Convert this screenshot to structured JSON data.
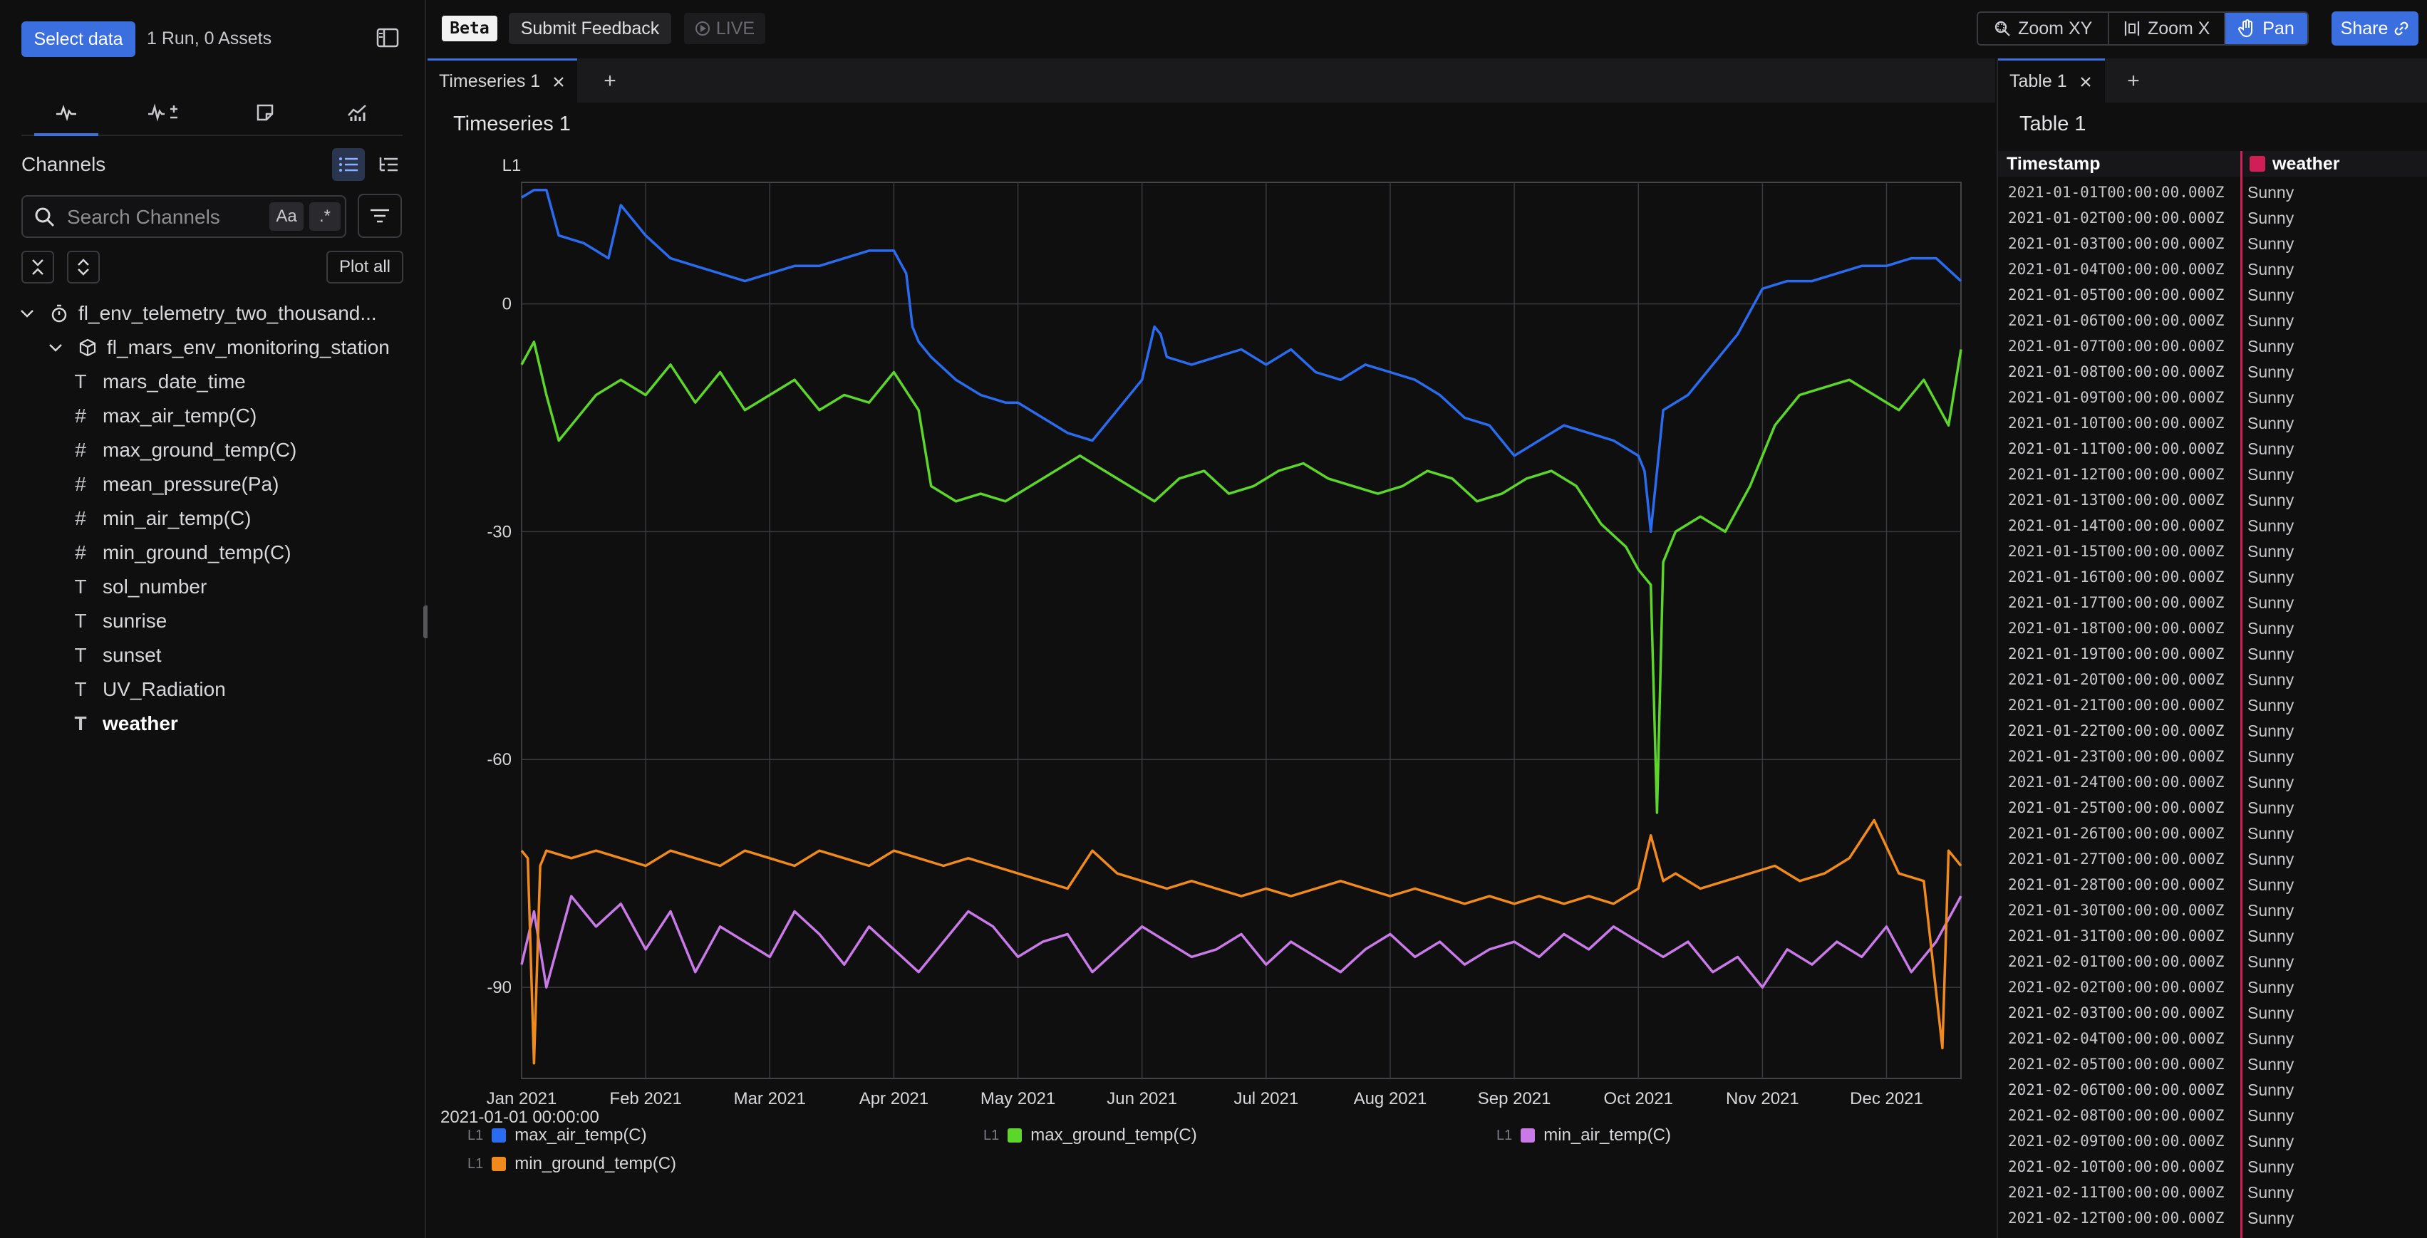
{
  "sidebar": {
    "select_data_label": "Select data",
    "run_info": "1 Run, 0 Assets",
    "tabs": [
      "pulse-icon",
      "pulse-plus-minus-icon",
      "note-icon",
      "chart-icon"
    ],
    "channels_title": "Channels",
    "search": {
      "placeholder": "Search Channels",
      "value": ""
    },
    "case_toggle_label": "Aa",
    "regex_toggle_label": ".*",
    "plot_all_label": "Plot all",
    "tree": {
      "run_name": "fl_env_telemetry_two_thousand...",
      "asset_name": "fl_mars_env_monitoring_station",
      "channels": [
        {
          "name": "mars_date_time",
          "type": "T"
        },
        {
          "name": "max_air_temp(C)",
          "type": "#"
        },
        {
          "name": "max_ground_temp(C)",
          "type": "#"
        },
        {
          "name": "mean_pressure(Pa)",
          "type": "#"
        },
        {
          "name": "min_air_temp(C)",
          "type": "#"
        },
        {
          "name": "min_ground_temp(C)",
          "type": "#"
        },
        {
          "name": "sol_number",
          "type": "T"
        },
        {
          "name": "sunrise",
          "type": "T"
        },
        {
          "name": "sunset",
          "type": "T"
        },
        {
          "name": "UV_Radiation",
          "type": "T"
        },
        {
          "name": "weather",
          "type": "T",
          "selected": true
        }
      ]
    }
  },
  "topbar": {
    "beta_label": "Beta",
    "feedback_label": "Submit Feedback",
    "live_label": "LIVE",
    "zoom_xy_label": "Zoom XY",
    "zoom_x_label": "Zoom X",
    "pan_label": "Pan",
    "share_label": "Share"
  },
  "timeseries_panel": {
    "tab_label": "Timeseries 1",
    "title": "Timeseries 1",
    "start_label": "2021-01-01 00:00:00"
  },
  "chart_data": {
    "type": "line",
    "title": "Timeseries 1",
    "axis_label": "L1",
    "ylim": [
      -102,
      16
    ],
    "yticks": [
      0,
      -30,
      -60,
      -90
    ],
    "xlim_month": [
      0,
      11.6
    ],
    "xticks": [
      "Jan 2021",
      "Feb 2021",
      "Mar 2021",
      "Apr 2021",
      "May 2021",
      "Jun 2021",
      "Jul 2021",
      "Aug 2021",
      "Sep 2021",
      "Oct 2021",
      "Nov 2021",
      "Dec 2021"
    ],
    "grid": true,
    "legend_placement": "bottom",
    "series": [
      {
        "name": "max_air_temp(C)",
        "color": "#2a6cf0",
        "x": [
          0,
          0.1,
          0.2,
          0.3,
          0.5,
          0.6,
          0.7,
          0.8,
          1.0,
          1.2,
          1.4,
          1.6,
          1.8,
          2.0,
          2.2,
          2.4,
          2.6,
          2.8,
          3.0,
          3.1,
          3.15,
          3.2,
          3.3,
          3.5,
          3.7,
          3.9,
          4.0,
          4.2,
          4.4,
          4.6,
          4.8,
          5.0,
          5.1,
          5.15,
          5.2,
          5.4,
          5.6,
          5.8,
          6.0,
          6.2,
          6.4,
          6.6,
          6.8,
          7.0,
          7.2,
          7.4,
          7.6,
          7.8,
          8.0,
          8.2,
          8.4,
          8.6,
          8.8,
          9.0,
          9.05,
          9.1,
          9.2,
          9.4,
          9.6,
          9.8,
          10.0,
          10.2,
          10.4,
          10.6,
          10.8,
          11.0,
          11.2,
          11.4,
          11.6
        ],
        "y": [
          14,
          15,
          15,
          9,
          8,
          7,
          6,
          13,
          9,
          6,
          5,
          4,
          3,
          4,
          5,
          5,
          6,
          7,
          7,
          4,
          -3,
          -5,
          -7,
          -10,
          -12,
          -13,
          -13,
          -15,
          -17,
          -18,
          -14,
          -10,
          -3,
          -4,
          -7,
          -8,
          -7,
          -6,
          -8,
          -6,
          -9,
          -10,
          -8,
          -9,
          -10,
          -12,
          -15,
          -16,
          -20,
          -18,
          -16,
          -17,
          -18,
          -20,
          -22,
          -30,
          -14,
          -12,
          -8,
          -4,
          2,
          3,
          3,
          4,
          5,
          5,
          6,
          6,
          3
        ]
      },
      {
        "name": "max_ground_temp(C)",
        "color": "#5cd62a",
        "x": [
          0,
          0.1,
          0.2,
          0.3,
          0.4,
          0.6,
          0.8,
          1.0,
          1.2,
          1.4,
          1.6,
          1.8,
          2.0,
          2.2,
          2.4,
          2.6,
          2.8,
          3.0,
          3.2,
          3.3,
          3.5,
          3.7,
          3.9,
          4.1,
          4.3,
          4.5,
          4.7,
          4.9,
          5.1,
          5.3,
          5.5,
          5.7,
          5.9,
          6.1,
          6.3,
          6.5,
          6.7,
          6.9,
          7.1,
          7.3,
          7.5,
          7.7,
          7.9,
          8.1,
          8.3,
          8.5,
          8.7,
          8.9,
          9.0,
          9.1,
          9.15,
          9.2,
          9.3,
          9.5,
          9.7,
          9.9,
          10.1,
          10.3,
          10.5,
          10.7,
          10.9,
          11.1,
          11.3,
          11.5,
          11.6
        ],
        "y": [
          -8,
          -5,
          -12,
          -18,
          -16,
          -12,
          -10,
          -12,
          -8,
          -13,
          -9,
          -14,
          -12,
          -10,
          -14,
          -12,
          -13,
          -9,
          -14,
          -24,
          -26,
          -25,
          -26,
          -24,
          -22,
          -20,
          -22,
          -24,
          -26,
          -23,
          -22,
          -25,
          -24,
          -22,
          -21,
          -23,
          -24,
          -25,
          -24,
          -22,
          -23,
          -26,
          -25,
          -23,
          -22,
          -24,
          -29,
          -32,
          -35,
          -37,
          -67,
          -34,
          -30,
          -28,
          -30,
          -24,
          -16,
          -12,
          -11,
          -10,
          -12,
          -14,
          -10,
          -16,
          -6
        ]
      },
      {
        "name": "min_air_temp(C)",
        "color": "#c97ae8",
        "x": [
          0,
          0.1,
          0.2,
          0.3,
          0.4,
          0.6,
          0.8,
          1.0,
          1.2,
          1.4,
          1.6,
          1.8,
          2.0,
          2.2,
          2.4,
          2.6,
          2.8,
          3.0,
          3.2,
          3.4,
          3.6,
          3.8,
          4.0,
          4.2,
          4.4,
          4.6,
          4.8,
          5.0,
          5.2,
          5.4,
          5.6,
          5.8,
          6.0,
          6.2,
          6.4,
          6.6,
          6.8,
          7.0,
          7.2,
          7.4,
          7.6,
          7.8,
          8.0,
          8.2,
          8.4,
          8.6,
          8.8,
          9.0,
          9.2,
          9.4,
          9.6,
          9.8,
          10.0,
          10.2,
          10.4,
          10.6,
          10.8,
          11.0,
          11.2,
          11.4,
          11.6
        ],
        "y": [
          -87,
          -80,
          -90,
          -84,
          -78,
          -82,
          -79,
          -85,
          -80,
          -88,
          -82,
          -84,
          -86,
          -80,
          -83,
          -87,
          -82,
          -85,
          -88,
          -84,
          -80,
          -82,
          -86,
          -84,
          -83,
          -88,
          -85,
          -82,
          -84,
          -86,
          -85,
          -83,
          -87,
          -84,
          -86,
          -88,
          -85,
          -83,
          -86,
          -84,
          -87,
          -85,
          -84,
          -86,
          -83,
          -85,
          -82,
          -84,
          -86,
          -84,
          -88,
          -86,
          -90,
          -85,
          -87,
          -84,
          -86,
          -82,
          -88,
          -84,
          -78
        ]
      },
      {
        "name": "min_ground_temp(C)",
        "color": "#f08a1c",
        "x": [
          0,
          0.05,
          0.1,
          0.15,
          0.2,
          0.4,
          0.6,
          0.8,
          1.0,
          1.2,
          1.4,
          1.6,
          1.8,
          2.0,
          2.2,
          2.4,
          2.6,
          2.8,
          3.0,
          3.2,
          3.4,
          3.6,
          3.8,
          4.0,
          4.2,
          4.4,
          4.6,
          4.8,
          5.0,
          5.2,
          5.4,
          5.6,
          5.8,
          6.0,
          6.2,
          6.4,
          6.6,
          6.8,
          7.0,
          7.2,
          7.4,
          7.6,
          7.8,
          8.0,
          8.2,
          8.4,
          8.6,
          8.8,
          9.0,
          9.1,
          9.2,
          9.3,
          9.5,
          9.7,
          9.9,
          10.1,
          10.3,
          10.5,
          10.7,
          10.9,
          11.1,
          11.3,
          11.45,
          11.5,
          11.6
        ],
        "y": [
          -72,
          -73,
          -100,
          -74,
          -72,
          -73,
          -72,
          -73,
          -74,
          -72,
          -73,
          -74,
          -72,
          -73,
          -74,
          -72,
          -73,
          -74,
          -72,
          -73,
          -74,
          -73,
          -74,
          -75,
          -76,
          -77,
          -72,
          -75,
          -76,
          -77,
          -76,
          -77,
          -78,
          -77,
          -78,
          -77,
          -76,
          -77,
          -78,
          -77,
          -78,
          -79,
          -78,
          -79,
          -78,
          -79,
          -78,
          -79,
          -77,
          -70,
          -76,
          -75,
          -77,
          -76,
          -75,
          -74,
          -76,
          -75,
          -73,
          -68,
          -75,
          -76,
          -98,
          -72,
          -74
        ]
      }
    ]
  },
  "table_panel": {
    "tab_label": "Table 1",
    "title": "Table 1",
    "columns": [
      "Timestamp",
      "weather"
    ],
    "weather_color": "#d21e56",
    "rows": [
      [
        "2021-01-01T00:00:00.000Z",
        "Sunny"
      ],
      [
        "2021-01-02T00:00:00.000Z",
        "Sunny"
      ],
      [
        "2021-01-03T00:00:00.000Z",
        "Sunny"
      ],
      [
        "2021-01-04T00:00:00.000Z",
        "Sunny"
      ],
      [
        "2021-01-05T00:00:00.000Z",
        "Sunny"
      ],
      [
        "2021-01-06T00:00:00.000Z",
        "Sunny"
      ],
      [
        "2021-01-07T00:00:00.000Z",
        "Sunny"
      ],
      [
        "2021-01-08T00:00:00.000Z",
        "Sunny"
      ],
      [
        "2021-01-09T00:00:00.000Z",
        "Sunny"
      ],
      [
        "2021-01-10T00:00:00.000Z",
        "Sunny"
      ],
      [
        "2021-01-11T00:00:00.000Z",
        "Sunny"
      ],
      [
        "2021-01-12T00:00:00.000Z",
        "Sunny"
      ],
      [
        "2021-01-13T00:00:00.000Z",
        "Sunny"
      ],
      [
        "2021-01-14T00:00:00.000Z",
        "Sunny"
      ],
      [
        "2021-01-15T00:00:00.000Z",
        "Sunny"
      ],
      [
        "2021-01-16T00:00:00.000Z",
        "Sunny"
      ],
      [
        "2021-01-17T00:00:00.000Z",
        "Sunny"
      ],
      [
        "2021-01-18T00:00:00.000Z",
        "Sunny"
      ],
      [
        "2021-01-19T00:00:00.000Z",
        "Sunny"
      ],
      [
        "2021-01-20T00:00:00.000Z",
        "Sunny"
      ],
      [
        "2021-01-21T00:00:00.000Z",
        "Sunny"
      ],
      [
        "2021-01-22T00:00:00.000Z",
        "Sunny"
      ],
      [
        "2021-01-23T00:00:00.000Z",
        "Sunny"
      ],
      [
        "2021-01-24T00:00:00.000Z",
        "Sunny"
      ],
      [
        "2021-01-25T00:00:00.000Z",
        "Sunny"
      ],
      [
        "2021-01-26T00:00:00.000Z",
        "Sunny"
      ],
      [
        "2021-01-27T00:00:00.000Z",
        "Sunny"
      ],
      [
        "2021-01-28T00:00:00.000Z",
        "Sunny"
      ],
      [
        "2021-01-30T00:00:00.000Z",
        "Sunny"
      ],
      [
        "2021-01-31T00:00:00.000Z",
        "Sunny"
      ],
      [
        "2021-02-01T00:00:00.000Z",
        "Sunny"
      ],
      [
        "2021-02-02T00:00:00.000Z",
        "Sunny"
      ],
      [
        "2021-02-03T00:00:00.000Z",
        "Sunny"
      ],
      [
        "2021-02-04T00:00:00.000Z",
        "Sunny"
      ],
      [
        "2021-02-05T00:00:00.000Z",
        "Sunny"
      ],
      [
        "2021-02-06T00:00:00.000Z",
        "Sunny"
      ],
      [
        "2021-02-08T00:00:00.000Z",
        "Sunny"
      ],
      [
        "2021-02-09T00:00:00.000Z",
        "Sunny"
      ],
      [
        "2021-02-10T00:00:00.000Z",
        "Sunny"
      ],
      [
        "2021-02-11T00:00:00.000Z",
        "Sunny"
      ],
      [
        "2021-02-12T00:00:00.000Z",
        "Sunny"
      ]
    ]
  }
}
